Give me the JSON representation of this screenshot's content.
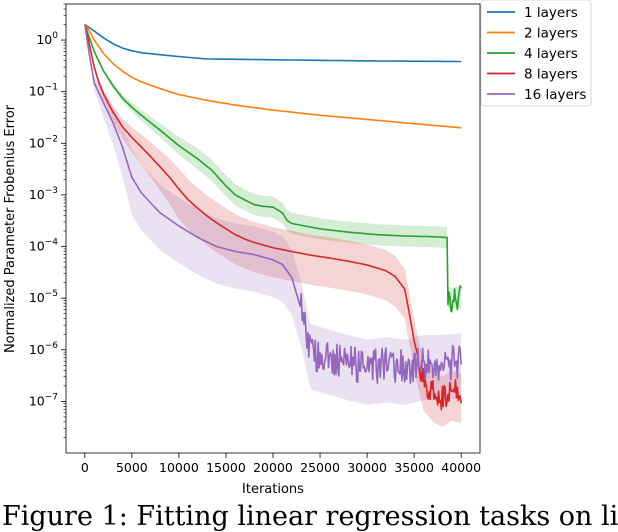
{
  "chart_data": {
    "type": "line",
    "xlabel": "Iterations",
    "ylabel": "Normalized Parameter Frobenius Error",
    "xlim": [
      -2000,
      42000
    ],
    "ylim": [
      1e-08,
      5
    ],
    "yscale": "log",
    "xticks": [
      0,
      5000,
      10000,
      15000,
      20000,
      25000,
      30000,
      35000,
      40000
    ],
    "xtick_labels": [
      "0",
      "5000",
      "10000",
      "15000",
      "20000",
      "25000",
      "30000",
      "35000",
      "40000"
    ],
    "yticks": [
      1e-07,
      1e-06,
      1e-05,
      0.0001,
      0.001,
      0.01,
      0.1,
      1
    ],
    "legend_position": "top-right, outside plot",
    "grid": false,
    "series": [
      {
        "name": "1 layers",
        "color": "#1f77b4",
        "points": [
          [
            0,
            2.0
          ],
          [
            1000,
            1.5
          ],
          [
            2000,
            1.1
          ],
          [
            3000,
            0.85
          ],
          [
            4000,
            0.7
          ],
          [
            5000,
            0.62
          ],
          [
            6000,
            0.57
          ],
          [
            8000,
            0.52
          ],
          [
            10000,
            0.48
          ],
          [
            13000,
            0.43
          ],
          [
            16000,
            0.425
          ],
          [
            20000,
            0.415
          ],
          [
            25000,
            0.405
          ],
          [
            30000,
            0.395
          ],
          [
            35000,
            0.39
          ],
          [
            40000,
            0.385
          ]
        ]
      },
      {
        "name": "2 layers",
        "color": "#ff7f0e",
        "points": [
          [
            0,
            2.0
          ],
          [
            500,
            1.5
          ],
          [
            1000,
            1.0
          ],
          [
            2000,
            0.55
          ],
          [
            3000,
            0.35
          ],
          [
            4000,
            0.25
          ],
          [
            5000,
            0.19
          ],
          [
            6000,
            0.155
          ],
          [
            8000,
            0.115
          ],
          [
            10000,
            0.088
          ],
          [
            13000,
            0.068
          ],
          [
            16000,
            0.055
          ],
          [
            20000,
            0.044
          ],
          [
            25000,
            0.035
          ],
          [
            30000,
            0.029
          ],
          [
            35000,
            0.024
          ],
          [
            40000,
            0.02
          ]
        ]
      },
      {
        "name": "4 layers",
        "color": "#2ca02c",
        "points": [
          [
            0,
            2.0
          ],
          [
            1000,
            0.6
          ],
          [
            2000,
            0.25
          ],
          [
            3000,
            0.13
          ],
          [
            4000,
            0.075
          ],
          [
            5000,
            0.05
          ],
          [
            6000,
            0.035
          ],
          [
            7000,
            0.025
          ],
          [
            8000,
            0.018
          ],
          [
            10000,
            0.009
          ],
          [
            12000,
            0.005
          ],
          [
            13500,
            0.003
          ],
          [
            15000,
            0.0015
          ],
          [
            16000,
            0.001
          ],
          [
            17000,
            0.0008
          ],
          [
            18000,
            0.00065
          ],
          [
            19000,
            0.0006
          ],
          [
            20000,
            0.00058
          ],
          [
            21000,
            0.00045
          ],
          [
            21500,
            0.00032
          ],
          [
            22000,
            0.00028
          ],
          [
            25000,
            0.00022
          ],
          [
            28000,
            0.00019
          ],
          [
            31000,
            0.00017
          ],
          [
            34000,
            0.00016
          ],
          [
            37000,
            0.000155
          ],
          [
            38500,
            0.00015
          ],
          [
            38600,
            1.05e-05
          ],
          [
            39000,
            9.8e-06
          ],
          [
            39500,
            1.05e-05
          ],
          [
            40000,
            1e-05
          ]
        ]
      },
      {
        "name": "8 layers",
        "color": "#d62728",
        "points": [
          [
            0,
            2.0
          ],
          [
            500,
            0.8
          ],
          [
            1000,
            0.3
          ],
          [
            1500,
            0.15
          ],
          [
            2000,
            0.09
          ],
          [
            3000,
            0.04
          ],
          [
            4000,
            0.021
          ],
          [
            5000,
            0.013
          ],
          [
            6000,
            0.0085
          ],
          [
            7000,
            0.0055
          ],
          [
            8000,
            0.0035
          ],
          [
            9000,
            0.0022
          ],
          [
            10000,
            0.0013
          ],
          [
            11000,
            0.0008
          ],
          [
            12000,
            0.00055
          ],
          [
            13000,
            0.00039
          ],
          [
            14000,
            0.00029
          ],
          [
            15000,
            0.00022
          ],
          [
            16000,
            0.00017
          ],
          [
            17000,
            0.00014
          ],
          [
            18000,
            0.00012
          ],
          [
            20000,
            9.5e-05
          ],
          [
            22000,
            8e-05
          ],
          [
            24000,
            6.8e-05
          ],
          [
            26000,
            6e-05
          ],
          [
            28000,
            5.2e-05
          ],
          [
            30000,
            4.4e-05
          ],
          [
            32000,
            3.4e-05
          ],
          [
            33000,
            2.6e-05
          ],
          [
            34000,
            1.5e-05
          ],
          [
            34500,
            5e-06
          ],
          [
            35000,
            1.5e-06
          ],
          [
            36000,
            2.5e-07
          ],
          [
            37000,
            1.5e-07
          ],
          [
            38000,
            1.2e-07
          ],
          [
            39000,
            1.6e-07
          ],
          [
            40000,
            1.4e-07
          ]
        ]
      },
      {
        "name": "16 layers",
        "color": "#9467bd",
        "points": [
          [
            0,
            2.0
          ],
          [
            500,
            0.5
          ],
          [
            1000,
            0.15
          ],
          [
            2000,
            0.06
          ],
          [
            3000,
            0.025
          ],
          [
            4000,
            0.0085
          ],
          [
            5000,
            0.0022
          ],
          [
            6000,
            0.0011
          ],
          [
            7000,
            0.0007
          ],
          [
            8000,
            0.00045
          ],
          [
            10000,
            0.00025
          ],
          [
            12000,
            0.00015
          ],
          [
            14000,
            0.0001
          ],
          [
            16000,
            8e-05
          ],
          [
            18000,
            7e-05
          ],
          [
            20000,
            5.5e-05
          ],
          [
            21000,
            4.5e-05
          ],
          [
            22000,
            2.5e-05
          ],
          [
            23000,
            6e-06
          ],
          [
            24000,
            9e-07
          ],
          [
            26000,
            7e-07
          ],
          [
            28000,
            5.5e-07
          ],
          [
            30000,
            4.5e-07
          ],
          [
            32000,
            5e-07
          ],
          [
            34000,
            4.5e-07
          ],
          [
            36000,
            5.5e-07
          ],
          [
            38000,
            5.5e-07
          ],
          [
            40000,
            6e-07
          ]
        ]
      }
    ]
  },
  "caption": {
    "text": "Figure 1: Fitting linear regression tasks on li"
  }
}
